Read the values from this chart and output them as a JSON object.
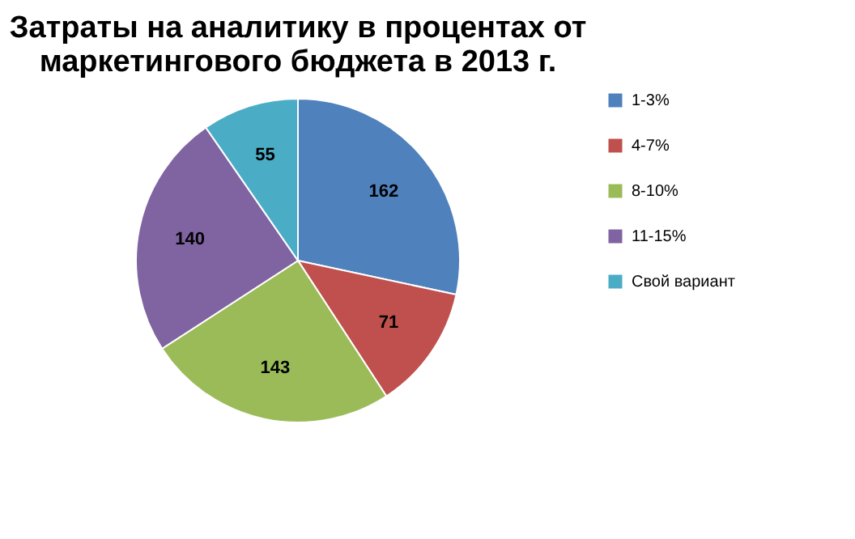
{
  "chart_data": {
    "type": "pie",
    "title": "Затраты на аналитику в процентах от\nмаркетингового бюджета в 2013 г.",
    "categories": [
      "1-3%",
      "4-7%",
      "8-10%",
      "11-15%",
      "Свой вариант"
    ],
    "values": [
      162,
      71,
      143,
      140,
      55
    ],
    "colors": [
      "#4f81bd",
      "#c0504d",
      "#9bbb59",
      "#8064a2",
      "#4bacc6"
    ],
    "data_labels": true,
    "legend": "right"
  }
}
